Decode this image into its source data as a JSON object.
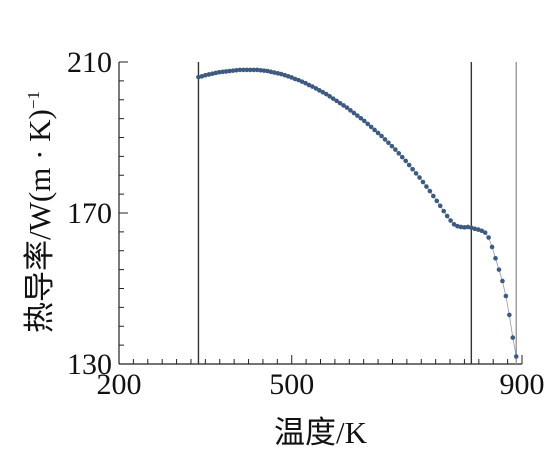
{
  "chart_data": {
    "type": "scatter",
    "title": "",
    "xlabel": "温度/K",
    "ylabel_main": "热导率/W(m · K)",
    "ylabel_sup": "−1",
    "xlim": [
      200,
      900
    ],
    "ylim": [
      130,
      210
    ],
    "xticks": [
      200,
      500,
      900
    ],
    "yticks": [
      130,
      170,
      210
    ],
    "xtick_labels": [
      "200",
      "500",
      "900"
    ],
    "ytick_labels": [
      "130",
      "170",
      "210"
    ],
    "reference_lines_x": [
      [
        338,
        "#333333"
      ],
      [
        812,
        "#333333"
      ],
      [
        890,
        "#999999"
      ]
    ],
    "grid": false,
    "legend": "none",
    "series": [
      {
        "color": "#3d5a80",
        "x": [
          338,
          344,
          350,
          356,
          362,
          368,
          374,
          380,
          386,
          392,
          398,
          404,
          410,
          416,
          422,
          428,
          434,
          440,
          446,
          452,
          458,
          464,
          470,
          476,
          482,
          488,
          494,
          500,
          506,
          512,
          518,
          524,
          530,
          536,
          542,
          548,
          554,
          560,
          566,
          572,
          578,
          584,
          590,
          596,
          602,
          608,
          614,
          620,
          626,
          632,
          638,
          644,
          650,
          656,
          662,
          668,
          674,
          680,
          686,
          692,
          698,
          704,
          710,
          716,
          722,
          728,
          734,
          740,
          746,
          752,
          758,
          764,
          770,
          776,
          782,
          788,
          794,
          800,
          806,
          812,
          818,
          824,
          830,
          836,
          842,
          848,
          854,
          860,
          866,
          872,
          878,
          884,
          890
        ],
        "y": [
          206.0,
          206.2,
          206.5,
          206.7,
          206.9,
          207.1,
          207.3,
          207.4,
          207.5,
          207.6,
          207.7,
          207.8,
          207.9,
          207.9,
          207.9,
          207.9,
          207.9,
          207.9,
          207.8,
          207.7,
          207.6,
          207.4,
          207.2,
          207.0,
          206.8,
          206.5,
          206.2,
          205.9,
          205.5,
          205.2,
          204.8,
          204.4,
          203.9,
          203.5,
          203.0,
          202.5,
          202.0,
          201.5,
          200.9,
          200.3,
          199.7,
          199.1,
          198.5,
          197.9,
          197.2,
          196.5,
          195.8,
          195.1,
          194.4,
          193.6,
          192.8,
          192.0,
          191.2,
          190.4,
          189.5,
          188.6,
          187.7,
          186.8,
          185.8,
          184.8,
          183.8,
          182.7,
          181.6,
          180.5,
          179.4,
          178.2,
          177.0,
          175.8,
          174.5,
          173.2,
          171.9,
          170.5,
          169.2,
          168.0,
          167.0,
          166.5,
          166.3,
          166.2,
          166.3,
          166.1,
          165.8,
          165.6,
          165.3,
          164.8,
          163.5,
          161.0,
          158.0,
          155.0,
          152.0,
          148.0,
          143.0,
          137.0,
          132.0
        ]
      }
    ]
  }
}
